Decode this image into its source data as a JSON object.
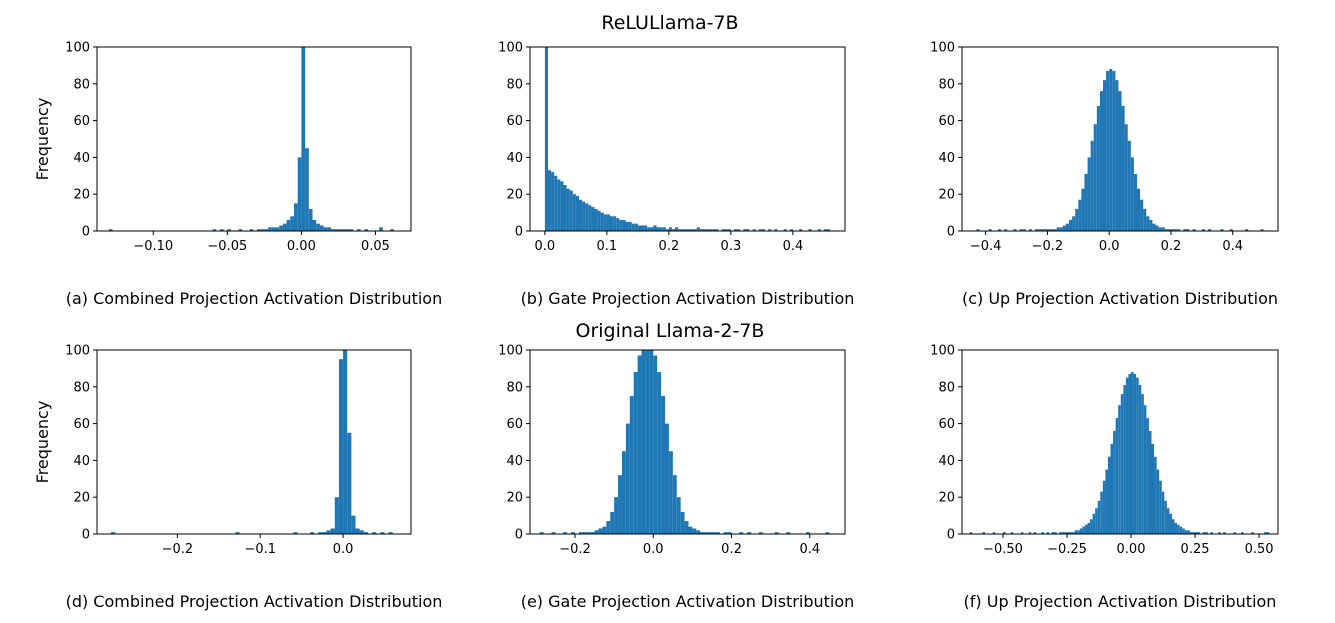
{
  "titles": {
    "top": "ReLULlama-7B",
    "bottom": "Original Llama-2-7B"
  },
  "colors": {
    "bars": "#1f77b4"
  },
  "chart_data": [
    {
      "type": "bar",
      "caption": "(a) Combined Projection Activation Distribution",
      "ylabel": "Frequency",
      "ylim": [
        0,
        100
      ],
      "yticks": [
        0,
        20,
        40,
        60,
        80,
        100
      ],
      "xlim": [
        -0.138,
        0.074
      ],
      "xticks": [
        -0.1,
        -0.05,
        0.0,
        0.05
      ],
      "xtick_labels": [
        "−0.10",
        "−0.05",
        "0.00",
        "0.05"
      ],
      "bin_start": -0.13,
      "bin_width": 0.0025,
      "counts": [
        1,
        0,
        0,
        0,
        0,
        0,
        0,
        0,
        0,
        0,
        0,
        0,
        0,
        0,
        0,
        0,
        0,
        0,
        0,
        0,
        0,
        0,
        0,
        0,
        0,
        0,
        0,
        0,
        1,
        0,
        1,
        0,
        1,
        0,
        0,
        1,
        0,
        0,
        1,
        0,
        1,
        1,
        1,
        2,
        2,
        2,
        3,
        4,
        6,
        8,
        15,
        40,
        100,
        45,
        12,
        6,
        4,
        3,
        2,
        2,
        1,
        1,
        1,
        1,
        1,
        1,
        0,
        1,
        0,
        1,
        0,
        0,
        0,
        2,
        0,
        0,
        1,
        0
      ]
    },
    {
      "type": "bar",
      "caption": "(b) Gate Projection Activation Distribution",
      "ylabel": "",
      "ylim": [
        0,
        100
      ],
      "yticks": [
        0,
        20,
        40,
        60,
        80,
        100
      ],
      "xlim": [
        -0.024,
        0.484
      ],
      "xticks": [
        0.0,
        0.1,
        0.2,
        0.3,
        0.4
      ],
      "xtick_labels": [
        "0.0",
        "0.1",
        "0.2",
        "0.3",
        "0.4"
      ],
      "bin_start": 0.0,
      "bin_width": 0.005,
      "counts": [
        100,
        33,
        32,
        30,
        28,
        27,
        25,
        23,
        22,
        20,
        19,
        17,
        16,
        15,
        14,
        13,
        12,
        11,
        10,
        9,
        9,
        8,
        8,
        7,
        6,
        6,
        5,
        5,
        4,
        4,
        3,
        3,
        3,
        2,
        2,
        3,
        2,
        2,
        2,
        1,
        2,
        1,
        2,
        1,
        1,
        1,
        1,
        1,
        1,
        2,
        1,
        1,
        1,
        1,
        1,
        1,
        0,
        1,
        1,
        1,
        0,
        1,
        1,
        0,
        1,
        1,
        0,
        1,
        0,
        1,
        1,
        0,
        1,
        0,
        1,
        0,
        0,
        1,
        0,
        1,
        0,
        0,
        1,
        0,
        0,
        1,
        0,
        0,
        1,
        0,
        1,
        1
      ]
    },
    {
      "type": "bar",
      "caption": "(c) Up Projection Activation Distribution",
      "ylabel": "",
      "ylim": [
        0,
        100
      ],
      "yticks": [
        0,
        20,
        40,
        60,
        80,
        100
      ],
      "xlim": [
        -0.4765,
        0.5465
      ],
      "xticks": [
        -0.4,
        -0.2,
        0.0,
        0.2,
        0.4
      ],
      "xtick_labels": [
        "−0.4",
        "−0.2",
        "0.0",
        "0.2",
        "0.4"
      ],
      "bin_start": -0.43,
      "bin_width": 0.01,
      "counts": [
        1,
        0,
        0,
        0,
        1,
        0,
        0,
        1,
        0,
        1,
        0,
        0,
        1,
        0,
        1,
        1,
        0,
        1,
        0,
        1,
        1,
        1,
        1,
        1,
        1,
        1,
        2,
        2,
        3,
        4,
        6,
        8,
        12,
        17,
        23,
        31,
        40,
        49,
        58,
        68,
        76,
        82,
        87,
        88,
        87,
        82,
        76,
        68,
        58,
        49,
        40,
        31,
        23,
        17,
        12,
        8,
        6,
        4,
        3,
        2,
        2,
        1,
        1,
        1,
        1,
        1,
        0,
        1,
        1,
        0,
        1,
        0,
        0,
        1,
        0,
        1,
        0,
        0,
        0,
        1,
        0,
        0,
        1,
        0,
        0,
        0,
        0,
        1,
        0,
        0,
        0,
        0,
        1
      ]
    },
    {
      "type": "bar",
      "caption": "(d) Combined Projection Activation Distribution",
      "ylabel": "Frequency",
      "ylim": [
        0,
        100
      ],
      "yticks": [
        0,
        20,
        40,
        60,
        80,
        100
      ],
      "xlim": [
        -0.297,
        0.082
      ],
      "xticks": [
        -0.2,
        -0.1,
        0.0
      ],
      "xtick_labels": [
        "−0.2",
        "−0.1",
        "0.0"
      ],
      "bin_start": -0.28,
      "bin_width": 0.005,
      "counts": [
        1,
        0,
        0,
        0,
        0,
        0,
        0,
        0,
        0,
        0,
        0,
        0,
        0,
        0,
        0,
        0,
        0,
        0,
        0,
        0,
        0,
        0,
        0,
        0,
        0,
        0,
        0,
        0,
        0,
        0,
        1,
        0,
        0,
        0,
        0,
        0,
        0,
        0,
        0,
        0,
        0,
        0,
        0,
        0,
        1,
        0,
        0,
        0,
        1,
        0,
        1,
        1,
        2,
        3,
        20,
        95,
        100,
        55,
        10,
        3,
        2,
        1,
        0,
        1,
        0,
        1,
        0,
        1,
        0
      ]
    },
    {
      "type": "bar",
      "caption": "(e) Gate Projection Activation Distribution",
      "ylabel": "",
      "ylim": [
        0,
        100
      ],
      "yticks": [
        0,
        20,
        40,
        60,
        80,
        100
      ],
      "xlim": [
        -0.315,
        0.49
      ],
      "xticks": [
        -0.2,
        0.0,
        0.2,
        0.4
      ],
      "xtick_labels": [
        "−0.2",
        "0.0",
        "0.2",
        "0.4"
      ],
      "bin_start": -0.29,
      "bin_width": 0.01,
      "counts": [
        1,
        0,
        0,
        1,
        0,
        0,
        1,
        0,
        1,
        0,
        1,
        1,
        1,
        1,
        2,
        3,
        4,
        7,
        12,
        20,
        32,
        45,
        60,
        75,
        88,
        97,
        100,
        100,
        100,
        97,
        88,
        75,
        60,
        45,
        32,
        20,
        12,
        7,
        4,
        3,
        2,
        1,
        1,
        1,
        1,
        1,
        0,
        1,
        1,
        0,
        0,
        1,
        0,
        1,
        0,
        0,
        1,
        0,
        0,
        0,
        1,
        0,
        0,
        1,
        0,
        0,
        0,
        0,
        1,
        0,
        0,
        0,
        0,
        1
      ]
    },
    {
      "type": "bar",
      "caption": "(f) Up Projection Activation Distribution",
      "ylabel": "",
      "ylim": [
        0,
        100
      ],
      "yticks": [
        0,
        20,
        40,
        60,
        80,
        100
      ],
      "xlim": [
        -0.66,
        0.574
      ],
      "xticks": [
        -0.5,
        -0.25,
        0.0,
        0.25,
        0.5
      ],
      "xtick_labels": [
        "−0.50",
        "−0.25",
        "0.00",
        "0.25",
        "0.50"
      ],
      "bin_start": -0.63,
      "bin_width": 0.01,
      "counts": [
        1,
        0,
        0,
        0,
        0,
        1,
        0,
        0,
        0,
        1,
        0,
        0,
        0,
        1,
        0,
        0,
        1,
        0,
        0,
        0,
        1,
        0,
        0,
        1,
        0,
        1,
        0,
        0,
        1,
        0,
        1,
        0,
        1,
        1,
        0,
        1,
        1,
        1,
        1,
        1,
        1,
        2,
        2,
        3,
        4,
        5,
        6,
        8,
        11,
        14,
        18,
        23,
        29,
        35,
        42,
        49,
        56,
        63,
        70,
        76,
        81,
        85,
        87,
        88,
        87,
        85,
        81,
        76,
        70,
        63,
        56,
        49,
        42,
        35,
        29,
        23,
        18,
        14,
        11,
        8,
        6,
        5,
        4,
        3,
        2,
        2,
        1,
        1,
        1,
        1,
        0,
        1,
        1,
        0,
        1,
        0,
        0,
        1,
        0,
        1,
        0,
        0,
        0,
        1,
        0,
        0,
        1,
        0,
        0,
        0,
        1,
        0,
        0,
        0,
        0,
        1,
        1
      ]
    }
  ]
}
